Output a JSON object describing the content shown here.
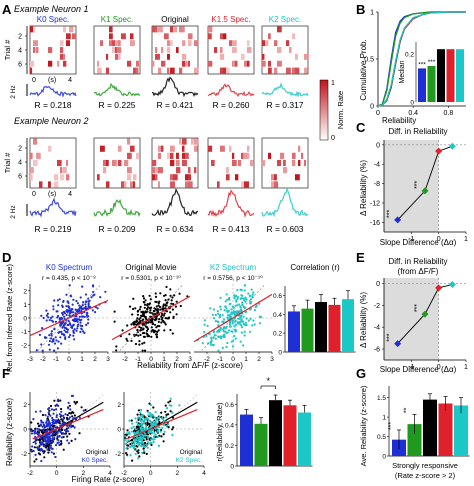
{
  "colors": {
    "k0": "#1f2fd6",
    "k1": "#1f9a1f",
    "orig": "#000000",
    "k15": "#e0202a",
    "k2": "#1cc7c7",
    "raster_dark": "#c0141c",
    "raster_light": "#f7c8c8",
    "gray_shade": "#dcdcdc"
  },
  "panel_letters": [
    "A",
    "B",
    "C",
    "D",
    "E",
    "F",
    "G"
  ],
  "panel_a": {
    "neuron1_title": "Example Neuron 1",
    "neuron2_title": "Example Neuron 2",
    "conditions": [
      "K0 Spec.",
      "K1 Spec.",
      "Original",
      "K1.5 Spec.",
      "K2 Spec."
    ],
    "ylabel_trial": "Trial #",
    "yticks_n1": [
      "2",
      "4",
      "6"
    ],
    "yticks_n2": [
      "2",
      "4",
      "6"
    ],
    "xtick_labels": [
      "0",
      "4"
    ],
    "xlabel_time": "(s)",
    "rate_scale_label": "2 Hz",
    "neuron1_R": [
      "R = 0.218",
      "R = 0.225",
      "R = 0.421",
      "R = 0.260",
      "R = 0.317"
    ],
    "neuron2_R": [
      "R = 0.219",
      "R = 0.209",
      "R = 0.634",
      "R = 0.413",
      "R = 0.603"
    ],
    "colorbar_label": "Norm. Rate",
    "colorbar_ticks": [
      "1",
      "0"
    ]
  },
  "panel_b": {
    "ylabel": "Cumulative Prob.",
    "xlabel": "Reliability",
    "yticks": [
      "0",
      "0.5",
      "1"
    ],
    "xticks": [
      "0",
      "0.4",
      "0.8"
    ],
    "inset_ylabel": "Median",
    "inset_yticks": [
      "0",
      "0.2"
    ],
    "inset_stars": [
      "***",
      "***"
    ]
  },
  "panel_c": {
    "title": "Diff. in Reliability",
    "ylabel": "Δ Reliability (%)",
    "xlabel": "Slope Difference (Δα)",
    "yticks": [
      "0",
      "-4",
      "-8",
      "-12",
      "-16"
    ],
    "xticks": [
      "-1",
      "0",
      "1"
    ],
    "stars": [
      "***",
      "***"
    ]
  },
  "panel_d": {
    "titles": [
      "K0 Spectrum",
      "Original Movie",
      "K2 Spectrum",
      "Correlation (r)"
    ],
    "stats": [
      "r = 0.435, p < 10⁻⁸",
      "r = 0.5301, p < 10⁻¹⁰",
      "r = 0.5756, p < 10⁻¹⁰"
    ],
    "ylabel": "Rel. from Inferred Rate (z-score)",
    "xlabel": "Reliability from ΔF/F (z-score)",
    "xticks": [
      "-3",
      "-2",
      "-1",
      "0",
      "1",
      "2",
      "3"
    ],
    "yticks": [
      "2",
      "1",
      "0",
      "-1",
      "-2"
    ],
    "bar_yticks": [
      "0",
      "0.2",
      "0.4",
      "0.6"
    ]
  },
  "panel_e": {
    "title": "Diff. in Reliability",
    "subtitle": "(from ΔF/F)",
    "ylabel": "Δ Reliability (%)",
    "xlabel": "Slope Difference (Δα)",
    "yticks": [
      "0",
      "-2",
      "-4",
      "-6"
    ],
    "xticks": [
      "-1",
      "0",
      "1"
    ],
    "stars": [
      "***",
      "***"
    ]
  },
  "panel_f": {
    "ylabel": "Reliability (z-score)",
    "xlabel": "Firing Rate (z-score)",
    "yticks": [
      "2",
      "0",
      "-2"
    ],
    "xticks": [
      "-2",
      "0",
      "2",
      "4"
    ],
    "legend_left": [
      "Original",
      "K0 Spec."
    ],
    "legend_right": [
      "Original",
      "K2 Spec."
    ],
    "bar_ylabel": "r(Reliability, Rate)",
    "bar_yticks": [
      "0",
      "0.2",
      "0.4",
      "0.6"
    ],
    "star": "*"
  },
  "panel_g": {
    "ylabel": "Ave. Reliability (z-score)",
    "xlabel_line1": "Strongly responsive",
    "xlabel_line2": "(Rate z-score > 2)",
    "yticks": [
      "0",
      "0.5",
      "1",
      "1.5"
    ],
    "stars": [
      "***",
      "**"
    ]
  },
  "chart_data": [
    {
      "type": "line",
      "title": "Example Neuron 1",
      "panel": "A",
      "series": [
        {
          "name": "K0 Spec.",
          "R": 0.218
        },
        {
          "name": "K1 Spec.",
          "R": 0.225
        },
        {
          "name": "Original",
          "R": 0.421
        },
        {
          "name": "K1.5 Spec.",
          "R": 0.26
        },
        {
          "name": "K2 Spec.",
          "R": 0.317
        }
      ]
    },
    {
      "type": "line",
      "title": "Example Neuron 2",
      "panel": "A",
      "series": [
        {
          "name": "K0 Spec.",
          "R": 0.219
        },
        {
          "name": "K1 Spec.",
          "R": 0.209
        },
        {
          "name": "Original",
          "R": 0.634
        },
        {
          "name": "K1.5 Spec.",
          "R": 0.413
        },
        {
          "name": "K2 Spec.",
          "R": 0.603
        }
      ]
    },
    {
      "type": "line",
      "panel": "B",
      "xlabel": "Reliability",
      "ylabel": "Cumulative Prob.",
      "xlim": [
        0,
        1
      ],
      "ylim": [
        0,
        1
      ],
      "cdf_x": [
        0.0,
        0.05,
        0.1,
        0.15,
        0.2,
        0.25,
        0.3,
        0.4,
        0.5,
        0.6,
        0.8,
        1.0
      ],
      "series": [
        {
          "color": "k0",
          "values": [
            0,
            0.02,
            0.18,
            0.5,
            0.78,
            0.9,
            0.95,
            0.98,
            0.99,
            1,
            1,
            1
          ]
        },
        {
          "color": "k1",
          "values": [
            0,
            0.02,
            0.16,
            0.46,
            0.74,
            0.88,
            0.94,
            0.98,
            0.99,
            1,
            1,
            1
          ]
        },
        {
          "color": "orig",
          "values": [
            0,
            0.01,
            0.06,
            0.2,
            0.45,
            0.68,
            0.82,
            0.93,
            0.97,
            0.99,
            1,
            1
          ]
        },
        {
          "color": "k15",
          "values": [
            0,
            0.01,
            0.07,
            0.22,
            0.47,
            0.69,
            0.82,
            0.93,
            0.97,
            0.99,
            1,
            1
          ]
        },
        {
          "color": "k2",
          "values": [
            0,
            0.01,
            0.07,
            0.22,
            0.47,
            0.7,
            0.83,
            0.94,
            0.97,
            0.99,
            1,
            1
          ]
        }
      ],
      "inset": {
        "type": "bar",
        "ylabel": "Median",
        "values": [
          0.14,
          0.15,
          0.22,
          0.22,
          0.22
        ],
        "ylim": [
          0,
          0.25
        ]
      }
    },
    {
      "type": "line",
      "panel": "C",
      "title": "Diff. in Reliability",
      "xlabel": "Slope Difference (Δα)",
      "ylabel": "Δ Reliability (%)",
      "xlim": [
        -2,
        1
      ],
      "ylim": [
        -18,
        1
      ],
      "x": [
        -1.5,
        -0.5,
        0,
        0.5
      ],
      "values": [
        -15.5,
        -9.5,
        -1.3,
        -0.3
      ]
    },
    {
      "type": "scatter",
      "panel": "D",
      "xlabel": "Reliability from ΔF/F (z-score)",
      "ylabel": "Rel. from Inferred Rate (z-score)",
      "xlim": [
        -3,
        3
      ],
      "ylim": [
        -2.5,
        2.5
      ],
      "series": [
        {
          "name": "K0 Spectrum",
          "r": 0.435,
          "fit_slope": 0.43
        },
        {
          "name": "Original Movie",
          "r": 0.5301,
          "fit_slope": 0.53
        },
        {
          "name": "K2 Spectrum",
          "r": 0.5756,
          "fit_slope": 0.58
        }
      ],
      "bar": {
        "title": "Correlation (r)",
        "values": [
          0.43,
          0.46,
          0.53,
          0.5,
          0.56
        ],
        "errors": [
          0.06,
          0.09,
          0.08,
          0.07,
          0.09
        ],
        "ylim": [
          0,
          0.7
        ]
      }
    },
    {
      "type": "line",
      "panel": "E",
      "title": "Diff. in Reliability",
      "subtitle": "(from ΔF/F)",
      "xlabel": "Slope Difference (Δα)",
      "ylabel": "Δ Reliability (%)",
      "xlim": [
        -2,
        1
      ],
      "ylim": [
        -7,
        0.5
      ],
      "x": [
        -1.5,
        -0.5,
        0,
        0.5
      ],
      "values": [
        -5.5,
        -2.8,
        -0.4,
        -0.1
      ]
    },
    {
      "type": "scatter",
      "panel": "F",
      "xlabel": "Firing Rate (z-score)",
      "ylabel": "Reliability (z-score)",
      "xlim": [
        -2,
        4
      ],
      "ylim": [
        -3,
        3
      ],
      "bar": {
        "ylabel": "r(Reliability, Rate)",
        "values": [
          0.5,
          0.41,
          0.64,
          0.59,
          0.52
        ],
        "errors": [
          0.05,
          0.06,
          0.05,
          0.05,
          0.07
        ],
        "ylim": [
          0,
          0.7
        ]
      }
    },
    {
      "type": "bar",
      "panel": "G",
      "ylabel": "Ave. Reliability (z-score)",
      "xlabel": "Strongly responsive (Rate z-score > 2)",
      "values": [
        0.42,
        0.82,
        1.45,
        1.35,
        1.3
      ],
      "errors": [
        0.25,
        0.25,
        0.15,
        0.18,
        0.2
      ],
      "ylim": [
        0,
        1.8
      ]
    }
  ]
}
